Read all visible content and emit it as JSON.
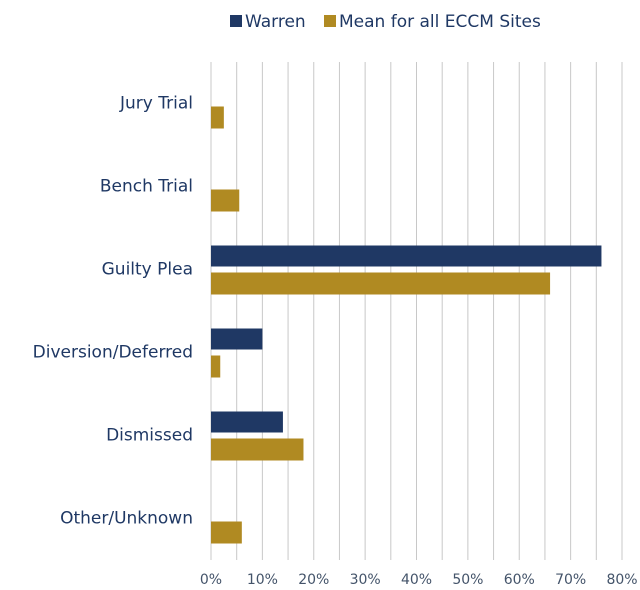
{
  "chart_data": {
    "type": "hbar",
    "categories": [
      "Jury Trial",
      "Bench Trial",
      "Guilty Plea",
      "Diversion/Deferred",
      "Dismissed",
      "Other/Unknown"
    ],
    "series": [
      {
        "name": "Warren",
        "color": "#1f3864",
        "values": [
          0,
          0,
          76,
          10,
          14,
          0
        ]
      },
      {
        "name": "Mean for all ECCM Sites",
        "color": "#b08a22",
        "values": [
          2.5,
          5.5,
          66,
          1.8,
          18,
          6
        ]
      }
    ],
    "xlim": [
      0,
      80
    ],
    "xticks": [
      {
        "value": 0,
        "label": "0%"
      },
      {
        "value": 10,
        "label": "10%"
      },
      {
        "value": 20,
        "label": "20%"
      },
      {
        "value": 30,
        "label": "30%"
      },
      {
        "value": 40,
        "label": "40%"
      },
      {
        "value": 50,
        "label": "50%"
      },
      {
        "value": 60,
        "label": "60%"
      },
      {
        "value": 70,
        "label": "70%"
      },
      {
        "value": 80,
        "label": "80%"
      }
    ],
    "xminorticks": [
      5,
      15,
      25,
      35,
      45,
      55,
      65,
      75
    ],
    "grid": true,
    "legend": "top"
  }
}
